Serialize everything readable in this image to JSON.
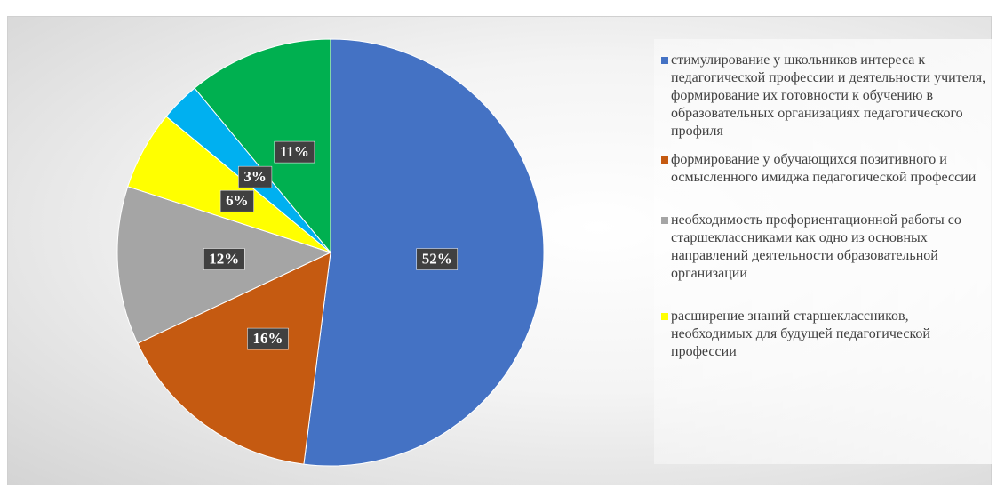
{
  "chart_data": {
    "type": "pie",
    "categories": [
      "стимулирование у школьников интереса к педагогической профессии и деятельности учителя, формирование их готовности к обучению в образовательных организациях педагогического профиля",
      "формирование у обучающихся позитивного и осмысленного имиджа педагогической профессии",
      "необходимость профориентационной работы со старшеклассниками как одно из основных направлений деятельности образовательной организации",
      "расширение знаний старшеклассников, необходимых для будущей педагогической профессии",
      null,
      null
    ],
    "values": [
      52,
      16,
      12,
      6,
      3,
      11
    ],
    "value_labels": [
      "52%",
      "16%",
      "12%",
      "6%",
      "3%",
      "11%"
    ],
    "colors": [
      "#4472c4",
      "#c55a11",
      "#a5a5a5",
      "#ffff00",
      "#00b0f0",
      "#00b050"
    ],
    "legend": "right"
  }
}
